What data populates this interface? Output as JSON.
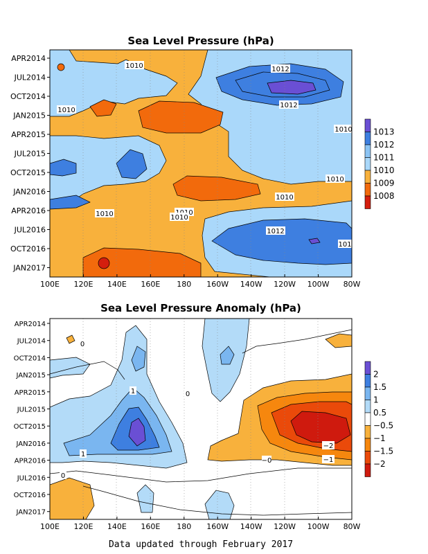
{
  "footer": "Data updated through February 2017",
  "chart_data": [
    {
      "type": "heatmap",
      "title": "Sea Level Pressure (hPa)",
      "x_tick_labels": [
        "100E",
        "120E",
        "140E",
        "160E",
        "180",
        "160W",
        "140W",
        "120W",
        "100W",
        "80W"
      ],
      "y_tick_labels": [
        "APR2014",
        "JUL2014",
        "OCT2014",
        "JAN2015",
        "APR2015",
        "JUL2015",
        "OCT2015",
        "JAN2016",
        "APR2016",
        "JUL2016",
        "OCT2016",
        "JAN2017"
      ],
      "colorbar": {
        "labels": [
          "1013",
          "1012",
          "1011",
          "1010",
          "1009",
          "1008"
        ],
        "colors": [
          "#6a4fd4",
          "#3e7fe0",
          "#8cc4f4",
          "#aad8fa",
          "#f8b13c",
          "#f26a0c",
          "#d41e0e"
        ]
      },
      "contour_labels": [
        "1010",
        "1012",
        "1012",
        "1010",
        "1010",
        "1010",
        "1010",
        "1010",
        "1010",
        "1010",
        "1012",
        "101"
      ],
      "background_colors": {
        "low": "#f8b13c",
        "mid": "#aad8fa",
        "high": "#3e7fe0"
      }
    },
    {
      "type": "heatmap",
      "title": "Sea Level Pressure Anomaly (hPa)",
      "x_tick_labels": [
        "100E",
        "120E",
        "140E",
        "160E",
        "180",
        "160W",
        "140W",
        "120W",
        "100W",
        "80W"
      ],
      "y_tick_labels": [
        "APR2014",
        "JUL2014",
        "OCT2014",
        "JAN2015",
        "APR2015",
        "JUL2015",
        "OCT2015",
        "JAN2016",
        "APR2016",
        "JUL2016",
        "OCT2016",
        "JAN2017"
      ],
      "colorbar": {
        "labels": [
          "2",
          "1.5",
          "1",
          "0.5",
          "−0.5",
          "−1",
          "−1.5",
          "−2"
        ],
        "colors": [
          "#6a4fd4",
          "#3e7fe0",
          "#7ab6f0",
          "#b3dbf8",
          "#ffffff",
          "#f8b13c",
          "#f6870e",
          "#ea4a0a",
          "#cf1a0e"
        ]
      },
      "contour_labels": [
        "0",
        "1",
        "1",
        "0",
        "−0",
        "−2",
        "−1",
        "0"
      ]
    }
  ]
}
